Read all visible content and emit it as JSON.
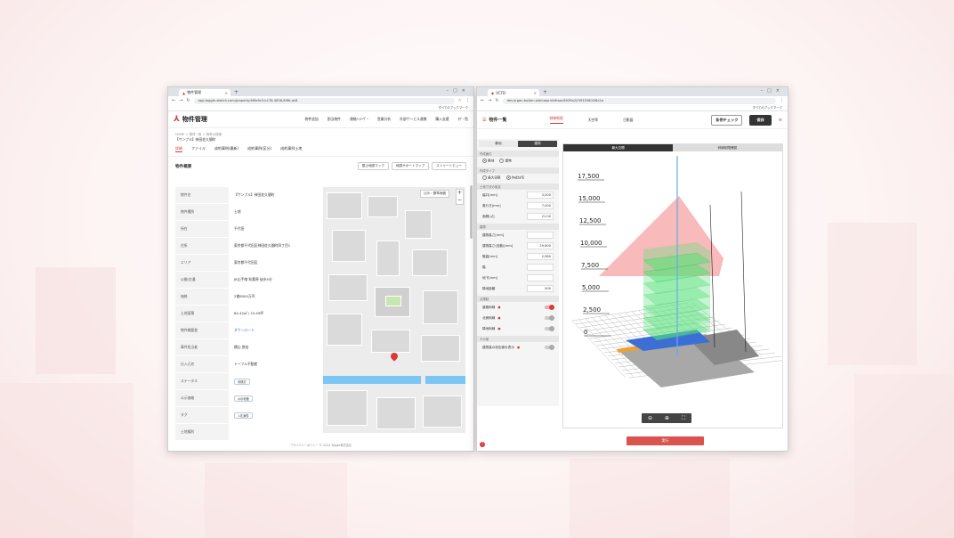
{
  "left_window": {
    "tab_title": "物件管理",
    "url": "app.toggle-sketch.com/property/4f6e9c5-b178-4838-89fb-dc8",
    "bookmark": "すべてのブックマーク",
    "app_name": "物件管理",
    "nav": [
      "物件追加",
      "割当物件",
      "連絡ｲﾝﾕｰｻﾞｰ",
      "営業分析",
      "外部サービス連携",
      "購入支援",
      "ﾀｳﾞｰ覧"
    ],
    "breadcrumb": "HOME ＞ 物件一覧 ＞ 物件の詳細",
    "subtitle": "【サンプル】神田佐久間町",
    "tabs": [
      "詳細",
      "ファイル",
      "成約事例(最新)",
      "成約事例(区分)",
      "成約事例土地"
    ],
    "section_title": "物件概要",
    "section_buttons": [
      "国土地図マップ",
      "地図サポートマップ",
      "ストリートビュー"
    ],
    "rows": [
      {
        "k": "物件名",
        "v": "【サンプル】神田佐久間町"
      },
      {
        "k": "物件種別",
        "v": "土地"
      },
      {
        "k": "所在",
        "v": "千代田"
      },
      {
        "k": "住所",
        "v": "東京都千代田区神田佐久間町四丁目1"
      },
      {
        "k": "エリア",
        "v": "東京都千代田区"
      },
      {
        "k": "公開/交通",
        "v": "JR山手線 秋葉原 徒歩5分"
      },
      {
        "k": "価格",
        "v": "2億8000万円"
      },
      {
        "k": "土地面積",
        "v": "64.42㎡ / 19.49坪"
      },
      {
        "k": "物件概要書",
        "v": "ダウンロード"
      },
      {
        "k": "事件担当者",
        "v": "横山 悠宏"
      },
      {
        "k": "仕入元名",
        "v": "トーフル不動産"
      },
      {
        "k": "ステータス",
        "v": "未検討"
      },
      {
        "k": "公示価格",
        "v": "公示地価"
      },
      {
        "k": "タグ",
        "v": "入札案件"
      },
      {
        "k": "土地権利",
        "v": ""
      }
    ],
    "map_button": "公示・基準地価",
    "footer": "プライバシーポリシー © 2024 Toggle株式会社"
  },
  "right_window": {
    "tab_title": "VCTD",
    "url": "dev.organ-button.ai/blueprint#tool/6035b2f/39350602f6c2a",
    "bookmark": "すべてのブックマーク",
    "title": "物件一覧",
    "tabs": [
      "斜線制限",
      "天空率",
      "日影図"
    ],
    "check_button": "条例チェック",
    "save_button": "保存",
    "panel_seg": [
      "敷地",
      "建物"
    ],
    "grp_terrain": "作成面位",
    "terrain_opts": [
      "敷地",
      "建物"
    ],
    "grp_type": "作成タイプ",
    "type_opts": [
      "最大容積",
      "作成住宅"
    ],
    "grp_size": "土地寸法の設定",
    "size_fields": [
      {
        "k": "幅口[mm]",
        "v": "3,000"
      },
      {
        "k": "奥行き[mm]",
        "v": "7,000"
      },
      {
        "k": "面積[㎡]",
        "v": "21.00"
      }
    ],
    "grp_build": "建物",
    "build_fields": [
      {
        "k": "建物高さ[mm]",
        "v": ""
      },
      {
        "k": "建物高さ(自動)[mm]",
        "v": "29,600"
      },
      {
        "k": "階高[mm]",
        "v": "2,960"
      },
      {
        "k": "階",
        "v": ""
      },
      {
        "k": "地下[mm]",
        "v": ""
      },
      {
        "k": "隣地距離",
        "v": "500"
      }
    ],
    "grp_limits": "法規制",
    "limit_toggles": [
      {
        "k": "道路斜線",
        "on": true
      },
      {
        "k": "北側斜線",
        "on": false
      },
      {
        "k": "隣地斜線",
        "on": false
      }
    ],
    "grp_other": "その他",
    "other_toggle": "建物高の設定値を表示",
    "view_tabs": [
      "最大空間",
      "斜線制限確認"
    ],
    "height_labels": [
      "17,500",
      "15,000",
      "12,500",
      "10,000",
      "7,500",
      "5,000",
      "2,500",
      "0"
    ],
    "run_button": "実行"
  },
  "colors": {
    "accent": "#d83a3a",
    "dark": "#333333",
    "green": "#58e27a",
    "pink": "#f5a3a3",
    "blue": "#3b6fd6"
  }
}
